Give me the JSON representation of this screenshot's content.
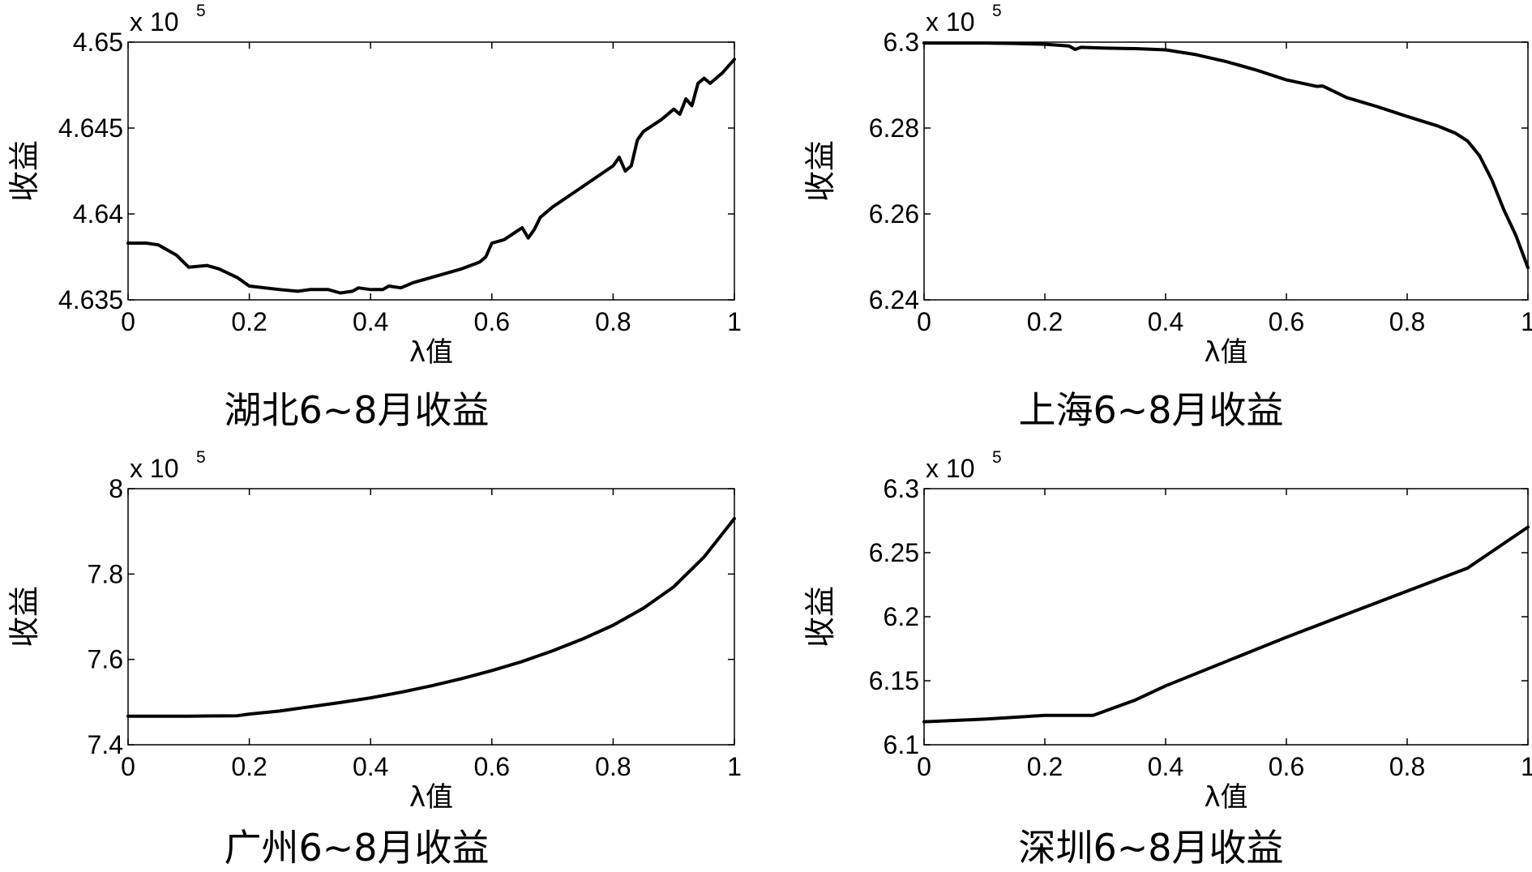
{
  "chart_data": [
    {
      "type": "line",
      "title": "湖北6~8月收益",
      "xlabel": "λ值",
      "ylabel": "收益",
      "exponent_label": "x 10",
      "exponent_power": "5",
      "xlim": [
        0,
        1
      ],
      "ylim": [
        4.635,
        4.65
      ],
      "xticks": [
        "0",
        "0.2",
        "0.4",
        "0.6",
        "0.8",
        "1"
      ],
      "yticks": [
        "4.635",
        "4.64",
        "4.645",
        "4.65"
      ],
      "grid": false,
      "series": [
        {
          "x": [
            0,
            0.03,
            0.05,
            0.08,
            0.1,
            0.13,
            0.15,
            0.18,
            0.2,
            0.25,
            0.28,
            0.3,
            0.33,
            0.35,
            0.37,
            0.38,
            0.4,
            0.42,
            0.43,
            0.45,
            0.47,
            0.5,
            0.55,
            0.58,
            0.59,
            0.6,
            0.62,
            0.65,
            0.66,
            0.67,
            0.68,
            0.7,
            0.75,
            0.8,
            0.81,
            0.82,
            0.83,
            0.84,
            0.85,
            0.88,
            0.9,
            0.91,
            0.92,
            0.93,
            0.94,
            0.95,
            0.96,
            0.98,
            1.0
          ],
          "y": [
            4.6383,
            4.6383,
            4.6382,
            4.6376,
            4.6369,
            4.637,
            4.6368,
            4.6363,
            4.6358,
            4.6356,
            4.6355,
            4.6356,
            4.6356,
            4.6354,
            4.6355,
            4.6357,
            4.6356,
            4.6356,
            4.6358,
            4.6357,
            4.636,
            4.6363,
            4.6368,
            4.6372,
            4.6375,
            4.6383,
            4.6385,
            4.6392,
            4.6386,
            4.6391,
            4.6398,
            4.6404,
            4.6416,
            4.6428,
            4.6433,
            4.6425,
            4.6428,
            4.6443,
            4.6448,
            4.6455,
            4.6461,
            4.6458,
            4.6467,
            4.6463,
            4.6476,
            4.6479,
            4.6476,
            4.6482,
            4.649
          ]
        }
      ]
    },
    {
      "type": "line",
      "title": "上海6~8月收益",
      "xlabel": "λ值",
      "ylabel": "收益",
      "exponent_label": "x 10",
      "exponent_power": "5",
      "xlim": [
        0,
        1
      ],
      "ylim": [
        6.24,
        6.3
      ],
      "xticks": [
        "0",
        "0.2",
        "0.4",
        "0.6",
        "0.8",
        "1"
      ],
      "yticks": [
        "6.24",
        "6.26",
        "6.28",
        "6.3"
      ],
      "grid": false,
      "series": [
        {
          "x": [
            0,
            0.1,
            0.15,
            0.2,
            0.24,
            0.25,
            0.26,
            0.28,
            0.3,
            0.35,
            0.4,
            0.45,
            0.5,
            0.55,
            0.6,
            0.65,
            0.66,
            0.7,
            0.75,
            0.8,
            0.85,
            0.88,
            0.9,
            0.92,
            0.94,
            0.96,
            0.98,
            1.0
          ],
          "y": [
            6.2998,
            6.2998,
            6.2997,
            6.2995,
            6.2991,
            6.2983,
            6.2988,
            6.2987,
            6.2986,
            6.2985,
            6.2982,
            6.2971,
            6.2955,
            6.2935,
            6.2912,
            6.2897,
            6.2898,
            6.2871,
            6.285,
            6.2827,
            6.2805,
            6.2788,
            6.277,
            6.2735,
            6.268,
            6.261,
            6.255,
            6.2475
          ]
        }
      ]
    },
    {
      "type": "line",
      "title": "广州6~8月收益",
      "xlabel": "λ值",
      "ylabel": "收益",
      "exponent_label": "x 10",
      "exponent_power": "5",
      "xlim": [
        0,
        1
      ],
      "ylim": [
        7.4,
        8.0
      ],
      "xticks": [
        "0",
        "0.2",
        "0.4",
        "0.6",
        "0.8",
        "1"
      ],
      "yticks": [
        "7.4",
        "7.6",
        "7.8",
        "8"
      ],
      "grid": false,
      "series": [
        {
          "x": [
            0,
            0.1,
            0.18,
            0.2,
            0.25,
            0.3,
            0.35,
            0.4,
            0.45,
            0.5,
            0.55,
            0.6,
            0.65,
            0.7,
            0.75,
            0.8,
            0.85,
            0.9,
            0.95,
            1.0
          ],
          "y": [
            7.467,
            7.467,
            7.468,
            7.472,
            7.479,
            7.489,
            7.499,
            7.51,
            7.523,
            7.538,
            7.555,
            7.574,
            7.595,
            7.62,
            7.648,
            7.68,
            7.72,
            7.77,
            7.84,
            7.93
          ]
        }
      ]
    },
    {
      "type": "line",
      "title": "深圳6~8月收益",
      "xlabel": "λ值",
      "ylabel": "收益",
      "exponent_label": "x 10",
      "exponent_power": "5",
      "xlim": [
        0,
        1
      ],
      "ylim": [
        6.1,
        6.3
      ],
      "xticks": [
        "0",
        "0.2",
        "0.4",
        "0.6",
        "0.8",
        "1"
      ],
      "yticks": [
        "6.1",
        "6.15",
        "6.2",
        "6.25",
        "6.3"
      ],
      "grid": false,
      "series": [
        {
          "x": [
            0,
            0.1,
            0.2,
            0.28,
            0.35,
            0.4,
            0.5,
            0.6,
            0.7,
            0.8,
            0.9,
            1.0
          ],
          "y": [
            6.118,
            6.12,
            6.123,
            6.123,
            6.135,
            6.146,
            6.165,
            6.184,
            6.202,
            6.22,
            6.238,
            6.27
          ]
        }
      ]
    }
  ]
}
